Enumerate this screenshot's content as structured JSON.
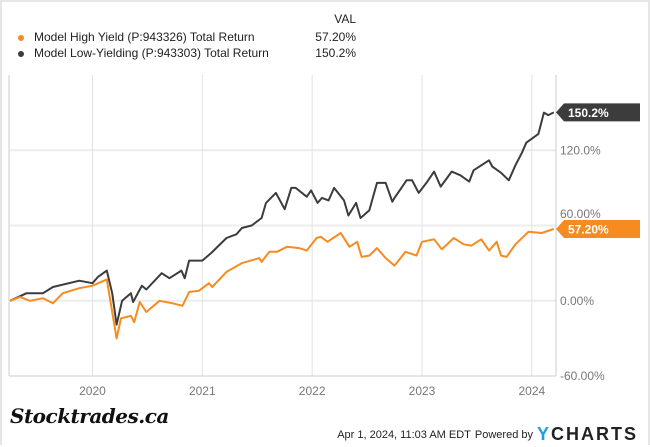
{
  "legend": {
    "header": "VAL",
    "items": [
      {
        "label": "Model High Yield (P:943326) Total Return",
        "value": "57.20%",
        "color": "#f68b1f"
      },
      {
        "label": "Model Low-Yielding (P:943303) Total Return",
        "value": "150.2%",
        "color": "#3c3c3c"
      }
    ]
  },
  "footer": {
    "timestamp": "Apr 1, 2024, 11:03 AM EDT",
    "powered_by": "Powered by",
    "brand_y": "Y",
    "brand_rest": "CHARTS",
    "watermark": "Stocktrades.ca"
  },
  "chart_data": {
    "type": "line",
    "title": "",
    "xlabel": "",
    "ylabel": "",
    "xlim": [
      2019.24,
      2024.22
    ],
    "ylim": [
      -60,
      180
    ],
    "grid": true,
    "x_ticks": [
      {
        "v": 2020,
        "label": "2020"
      },
      {
        "v": 2021,
        "label": "2021"
      },
      {
        "v": 2022,
        "label": "2022"
      },
      {
        "v": 2023,
        "label": "2023"
      },
      {
        "v": 2024,
        "label": "2024"
      }
    ],
    "y_ticks": [
      {
        "v": 120,
        "label": "120.0%"
      },
      {
        "v": 60,
        "label": "60.00%"
      },
      {
        "v": 0,
        "label": "0.00%"
      },
      {
        "v": -60,
        "label": "-60.00%"
      }
    ],
    "series": [
      {
        "name": "Model Low-Yielding (P:943303) Total Return",
        "color": "#3c3c3c",
        "end_label": "150.2%",
        "points": [
          [
            2019.25,
            0
          ],
          [
            2019.4,
            6
          ],
          [
            2019.55,
            6
          ],
          [
            2019.64,
            11
          ],
          [
            2019.88,
            16
          ],
          [
            2020.0,
            14
          ],
          [
            2020.05,
            19
          ],
          [
            2020.13,
            24
          ],
          [
            2020.18,
            6
          ],
          [
            2020.22,
            -19
          ],
          [
            2020.27,
            0
          ],
          [
            2020.35,
            6
          ],
          [
            2020.37,
            -1
          ],
          [
            2020.45,
            12
          ],
          [
            2020.49,
            9
          ],
          [
            2020.63,
            22
          ],
          [
            2020.7,
            18
          ],
          [
            2020.81,
            24
          ],
          [
            2020.84,
            18
          ],
          [
            2020.88,
            32
          ],
          [
            2021.0,
            32
          ],
          [
            2021.08,
            38
          ],
          [
            2021.22,
            50
          ],
          [
            2021.31,
            53
          ],
          [
            2021.36,
            58
          ],
          [
            2021.45,
            60
          ],
          [
            2021.54,
            66
          ],
          [
            2021.58,
            78
          ],
          [
            2021.67,
            86
          ],
          [
            2021.75,
            73
          ],
          [
            2021.81,
            90
          ],
          [
            2021.85,
            90
          ],
          [
            2021.95,
            83
          ],
          [
            2021.99,
            88
          ],
          [
            2022.05,
            78
          ],
          [
            2022.09,
            82
          ],
          [
            2022.15,
            80
          ],
          [
            2022.2,
            90
          ],
          [
            2022.29,
            80
          ],
          [
            2022.33,
            68
          ],
          [
            2022.4,
            78
          ],
          [
            2022.44,
            66
          ],
          [
            2022.52,
            72
          ],
          [
            2022.59,
            94
          ],
          [
            2022.67,
            94
          ],
          [
            2022.73,
            79
          ],
          [
            2022.75,
            82
          ],
          [
            2022.86,
            96
          ],
          [
            2022.91,
            96
          ],
          [
            2022.97,
            86
          ],
          [
            2023.04,
            94
          ],
          [
            2023.11,
            103
          ],
          [
            2023.17,
            91
          ],
          [
            2023.27,
            103
          ],
          [
            2023.35,
            100
          ],
          [
            2023.43,
            95
          ],
          [
            2023.47,
            104
          ],
          [
            2023.54,
            108
          ],
          [
            2023.61,
            112
          ],
          [
            2023.64,
            107
          ],
          [
            2023.72,
            102
          ],
          [
            2023.79,
            96
          ],
          [
            2023.85,
            108
          ],
          [
            2023.91,
            118
          ],
          [
            2023.95,
            126
          ],
          [
            2024.06,
            133
          ],
          [
            2024.11,
            150
          ],
          [
            2024.15,
            148
          ],
          [
            2024.2,
            150.2
          ]
        ]
      },
      {
        "name": "Model High Yield (P:943326) Total Return",
        "color": "#f68b1f",
        "end_label": "57.20%",
        "points": [
          [
            2019.25,
            0
          ],
          [
            2019.34,
            3
          ],
          [
            2019.43,
            0
          ],
          [
            2019.55,
            2
          ],
          [
            2019.64,
            -2
          ],
          [
            2019.73,
            6
          ],
          [
            2019.88,
            10
          ],
          [
            2020.0,
            12
          ],
          [
            2020.13,
            17
          ],
          [
            2020.22,
            -30
          ],
          [
            2020.26,
            -14
          ],
          [
            2020.35,
            -12
          ],
          [
            2020.38,
            -17
          ],
          [
            2020.43,
            -1
          ],
          [
            2020.49,
            -9
          ],
          [
            2020.61,
            0
          ],
          [
            2020.73,
            -2
          ],
          [
            2020.82,
            -4
          ],
          [
            2020.88,
            7
          ],
          [
            2020.97,
            8
          ],
          [
            2021.06,
            14
          ],
          [
            2021.09,
            11
          ],
          [
            2021.22,
            23
          ],
          [
            2021.36,
            30
          ],
          [
            2021.52,
            34
          ],
          [
            2021.54,
            31
          ],
          [
            2021.61,
            39
          ],
          [
            2021.68,
            39
          ],
          [
            2021.77,
            43
          ],
          [
            2021.88,
            42
          ],
          [
            2021.95,
            40
          ],
          [
            2022.04,
            50
          ],
          [
            2022.08,
            51
          ],
          [
            2022.14,
            47
          ],
          [
            2022.26,
            54
          ],
          [
            2022.34,
            43
          ],
          [
            2022.41,
            47
          ],
          [
            2022.45,
            35
          ],
          [
            2022.52,
            36
          ],
          [
            2022.59,
            42
          ],
          [
            2022.67,
            34
          ],
          [
            2022.75,
            28
          ],
          [
            2022.85,
            39
          ],
          [
            2022.95,
            36
          ],
          [
            2023.0,
            47
          ],
          [
            2023.11,
            49
          ],
          [
            2023.18,
            41
          ],
          [
            2023.29,
            50
          ],
          [
            2023.38,
            45
          ],
          [
            2023.45,
            44
          ],
          [
            2023.54,
            49
          ],
          [
            2023.61,
            40
          ],
          [
            2023.68,
            47
          ],
          [
            2023.72,
            36
          ],
          [
            2023.77,
            35
          ],
          [
            2023.85,
            45
          ],
          [
            2023.97,
            55
          ],
          [
            2024.09,
            54
          ],
          [
            2024.2,
            57.2
          ]
        ]
      }
    ]
  }
}
